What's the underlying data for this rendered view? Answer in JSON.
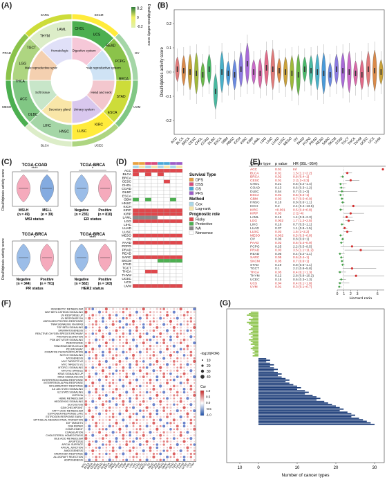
{
  "panels": {
    "A": "(A)",
    "B": "(B)",
    "C": "(C)",
    "D": "(D)",
    "E": "(E)",
    "F": "(F)",
    "G": "(G)"
  },
  "panel_a": {
    "legend_title": "Disulfidptosis activity score",
    "legend_ticks": [
      "0.2",
      "0",
      "-0.2"
    ],
    "outer_labels": [
      "CHOL",
      "UCS",
      "READ",
      "PCPG",
      "BRCA",
      "STAD",
      "ESCA",
      "KIRC",
      "LUSC",
      "HNSC",
      "LIHC",
      "DLBC",
      "ACC",
      "THCA",
      "LGG",
      "TGCT",
      "THYM",
      "LAML"
    ],
    "inner_labels": [
      "Digestive system",
      "Female reproductive system",
      "Head and neck",
      "Urinary system",
      "Secretory gland",
      "Soft tissue",
      "Male reproductive system",
      "Hematologic"
    ],
    "side_labels": [
      "SKCM",
      "OV",
      "UVM",
      "UCEC",
      "BLCA",
      "MESO",
      "PRAD",
      "SARC"
    ]
  },
  "panel_b": {
    "ylabel": "Disulfidptosis activity score",
    "yticks": [
      "0.2",
      "0.1",
      "0.0",
      "-0.1",
      "-0.2"
    ],
    "categories": [
      "ACC",
      "BLCA",
      "BRCA",
      "CESC",
      "CHOL",
      "COAD",
      "DLBC",
      "ESCA",
      "GBM",
      "HNSC",
      "KICH",
      "KIRC",
      "KIRP",
      "LAML",
      "LGG",
      "LIHC",
      "LUAD",
      "LUSC",
      "MESO",
      "OV",
      "PAAD",
      "PCPG",
      "PRAD",
      "READ",
      "SARC",
      "SKCM",
      "STAD",
      "TGCT",
      "THCA",
      "THYM",
      "UCEC",
      "UCS",
      "UVM"
    ],
    "colors": [
      "#e07a7a",
      "#d98a4a",
      "#c9a13a",
      "#9fb83a",
      "#6bb84a",
      "#4ab86a",
      "#4ab8a0",
      "#4ab0c8",
      "#4a9ad8",
      "#6a8ae0",
      "#8a7ae0",
      "#a86ad8",
      "#c86ac8",
      "#d86aa8",
      "#e06a88",
      "#e07a7a",
      "#d98a4a",
      "#c9a13a",
      "#9fb83a",
      "#6bb84a",
      "#4ab86a",
      "#4ab8a0",
      "#4ab0c8",
      "#4a9ad8",
      "#6a8ae0",
      "#8a7ae0",
      "#a86ad8",
      "#c86ac8",
      "#d86aa8",
      "#e06a88",
      "#e07a7a",
      "#d98a4a",
      "#c9a13a"
    ]
  },
  "panel_c": {
    "ylabel": "Disulfidptosis activity score",
    "plots": [
      {
        "title": "TCGA-COAD",
        "sig": "****",
        "groups": [
          "MSI-H",
          "MSI-L"
        ],
        "ns": [
          "(n = 49)",
          "(n = 39)"
        ],
        "xlabel": "MSI status",
        "colors": [
          "#f28da6",
          "#5b8fd6"
        ]
      },
      {
        "title": "TCGA-BRCA",
        "sig": "*",
        "groups": [
          "Negative",
          "Positive"
        ],
        "ns": [
          "(n = 235)",
          "(n = 810)"
        ],
        "xlabel": "ER status",
        "colors": [
          "#7aa7e0",
          "#f28da6"
        ]
      },
      {
        "title": "TCGA-BRCA",
        "sig": "*",
        "groups": [
          "Negative",
          "Positive"
        ],
        "ns": [
          "(n = 344)",
          "(n = 701)"
        ],
        "xlabel": "PR status",
        "colors": [
          "#7aa7e0",
          "#f28da6"
        ]
      },
      {
        "title": "TCGA-BRCA",
        "sig": "****",
        "groups": [
          "Negative",
          "Positive"
        ],
        "ns": [
          "(n = 562)",
          "(n = 163)"
        ],
        "xlabel": "HER2 status",
        "colors": [
          "#7aa7e0",
          "#f28da6"
        ]
      }
    ]
  },
  "panel_d": {
    "rows": [
      "ACC",
      "BLCA",
      "BRCA",
      "CESC",
      "CHOL",
      "COAD",
      "DLBC",
      "ESCA",
      "GBM",
      "HNSC",
      "KICH",
      "KIRC",
      "KIRP",
      "LAML",
      "LGG",
      "LIHC",
      "LUAD",
      "LUSC",
      "MESO",
      "OV",
      "PAAD",
      "PCPG",
      "PRAD",
      "READ",
      "SARC",
      "SKCM",
      "STAD",
      "TGCT",
      "THCA",
      "THYM",
      "UCEC",
      "UCS",
      "UVM"
    ],
    "legend": {
      "survival_title": "Survival Type",
      "survival": [
        {
          "label": "DFS",
          "color": "#e8a040"
        },
        {
          "label": "DSS",
          "color": "#d94c7c"
        },
        {
          "label": "OS",
          "color": "#4aa8d8"
        },
        {
          "label": "PFS",
          "color": "#9c5cc8"
        }
      ],
      "method_title": "Method",
      "method": [
        {
          "label": "Cox",
          "color": "#a8d8ea"
        },
        {
          "label": "Log-rank",
          "color": "#f5e6a8"
        }
      ],
      "prog_title": "Prognostic role",
      "prog": [
        {
          "label": "Risky",
          "color": "#e0474c"
        },
        {
          "label": "Protective",
          "color": "#4caf50"
        },
        {
          "label": "NA",
          "color": "#888888"
        },
        {
          "label": "Nonsense",
          "color": "#ffffff"
        }
      ]
    },
    "top_colors": [
      "#e8a040",
      "#e8a040",
      "#d94c7c",
      "#d94c7c",
      "#4aa8d8",
      "#4aa8d8",
      "#9c5cc8",
      "#9c5cc8"
    ],
    "method_colors": [
      "#a8d8ea",
      "#f5e6a8",
      "#a8d8ea",
      "#f5e6a8",
      "#a8d8ea",
      "#f5e6a8",
      "#a8d8ea",
      "#f5e6a8"
    ],
    "cells": [
      "RRRRRRRR",
      "RWRWRWWW",
      "WWWWWWWW",
      "WWWWWRWW",
      "WWWWWWWW",
      "WWWWWWWW",
      "WWWWWWWW",
      "WWWWWWWW",
      "GWGWWWGW",
      "WWWWWWWW",
      "WWWWWWWW",
      "RRRRRRRR",
      "RRRRRRRR",
      "NNNNWWWW",
      "RRRRRRRR",
      "WWWWWWWW",
      "WWWWWWWW",
      "WWWWWWWW",
      "RRRRRRRR",
      "WWWWWWWW",
      "RRRRRRRR",
      "WWWWWWWW",
      "WWWWWWWW",
      "WWWWWWWW",
      "RRRRRRRR",
      "WWWWGGGG",
      "WWWWWWWW",
      "WWWWWWWW",
      "WWRRWWWW",
      "WWWWWWWW",
      "WWWWWWWW",
      "WWWWWWWW",
      "RRRRRRRR"
    ]
  },
  "panel_e": {
    "headers": [
      "Cancer type",
      "p value",
      "HR (95L~95H)"
    ],
    "rows": [
      [
        "ACC",
        "0.01",
        "Inf",
        "r"
      ],
      [
        "BLCA",
        "0.01",
        "1.5 (1.1~2.2)",
        "r"
      ],
      [
        "BRCA",
        "0.02",
        "0.8 (0.4~1)",
        "r"
      ],
      [
        "CESC",
        "0.01",
        "2 (1.2~3.3)",
        "r"
      ],
      [
        "CHOL",
        "0.21",
        "0.5 (0.2~1.4)",
        "k"
      ],
      [
        "COAD",
        "0.13",
        "0.6 (0.3~1.2)",
        "k"
      ],
      [
        "DLBC",
        "0.54",
        "0.7 (0.1~3)",
        "k"
      ],
      [
        "ESCA",
        "0.01",
        "0.5 (0.2~1)",
        "r"
      ],
      [
        "GBM",
        "0.03",
        "0.7 (0.5~0.9)",
        "r"
      ],
      [
        "HNSC",
        "0.18",
        "0.8 (0.6~1.1)",
        "k"
      ],
      [
        "KICH",
        "0.2",
        "2.4 (0.4~13.6)",
        "k"
      ],
      [
        "KIRC",
        "<0.001",
        "0.5 (0.4~0.8)",
        "r"
      ],
      [
        "KIRP",
        "0.03",
        "2 (1~4)",
        "r"
      ],
      [
        "LAML",
        "0.15",
        "1.4 (0.8~2.3)",
        "k"
      ],
      [
        "LGG",
        "0.002",
        "1.7 (1.2~2.5)",
        "r"
      ],
      [
        "LIHC",
        "0.16",
        "0.7 (0.5~1.1)",
        "k"
      ],
      [
        "LUAD",
        "0.37",
        "1.1 (0.8~1.5)",
        "k"
      ],
      [
        "LUSC",
        "0.03",
        "1.5 (1~2.2)",
        "r"
      ],
      [
        "MESO",
        "0.002",
        "0.5 (0.3~0.8)",
        "r"
      ],
      [
        "OV",
        "0.06",
        "0.8 (0.6~1)",
        "k"
      ],
      [
        "PAAD",
        "0.02",
        "0.6 (0.4~0.9)",
        "r"
      ],
      [
        "PCPG",
        "0.25",
        "2.2 (0.5~9.5)",
        "k"
      ],
      [
        "PRAD",
        "0.03",
        "3.5 (1.1~11.2)",
        "r"
      ],
      [
        "READ",
        "0.06",
        "0.4 (0.2~1.1)",
        "k"
      ],
      [
        "SARC",
        "0.05",
        "0.6 (0.4~1)",
        "r"
      ],
      [
        "SKCM",
        "0.05",
        "0.7 (0.6~1)",
        "r"
      ],
      [
        "STAD",
        "0.19",
        "0.8 (0.6~1.1)",
        "k"
      ],
      [
        "TGCT",
        "0.1",
        "2.2 (0.8~5.8)",
        "k"
      ],
      [
        "THCA",
        "0.05",
        "0.4 (0.1~1.3)",
        "r"
      ],
      [
        "THYM",
        "0.12",
        "2.8 (0.8~10.2)",
        "k"
      ],
      [
        "UCEC",
        "0.15",
        "0.6 (0.3~1.3)",
        "k"
      ],
      [
        "UCS",
        "0.04",
        "0.4 (0.1~1.8)",
        "r"
      ],
      [
        "UVM",
        "0.01",
        "0.3 (0.1~0.7)",
        "r"
      ]
    ],
    "xlabel": "Hazard ratio",
    "xticks": [
      "0",
      "1",
      "2",
      "3",
      "6"
    ]
  },
  "panel_f": {
    "rows": [
      "XENOBIOTIC METABOLISM",
      "WNT BETA CATENIN SIGNALING",
      "UV RESPONSE UP",
      "UV RESPONSE DN",
      "UNFOLDED PROTEIN RESPONSE",
      "TNFA SIGNALING VIA NFKB",
      "TGF BETA SIGNALING",
      "SPERMATOGENESIS",
      "REACTIVE OXYGEN SPECIES PATHWAY",
      "PROTEIN SECRETION",
      "PI3K AKT MTOR SIGNALING",
      "PEROXISOME",
      "PANCREAS BETA CELLS",
      "P53 PATHWAY",
      "OXIDATIVE PHOSPHORYLATION",
      "NOTCH SIGNALING",
      "MYOGENESIS",
      "MYC TARGETS V2",
      "MYC TARGETS V1",
      "MTORC1 SIGNALING",
      "MITOTIC SPINDLE",
      "KRAS SIGNALING UP",
      "KRAS SIGNALING DN",
      "INTERFERON GAMMA RESPONSE",
      "INTERFERON ALPHA RESPONSE",
      "INFLAMMATORY RESPONSE",
      "IL6 JAK STAT3 SIGNALING",
      "IL2 STAT5 SIGNALING",
      "HYPOXIA",
      "HEME METABOLISM",
      "HEDGEHOG SIGNALING",
      "GLYCOLYSIS",
      "G2M CHECKPOINT",
      "FATTY ACID METABOLISM",
      "ESTROGEN RESPONSE LATE",
      "ESTROGEN RESPONSE EARLY",
      "EPITHELIAL MESENCHYMAL TRANSITION",
      "E2F TARGETS",
      "DNA REPAIR",
      "COMPLEMENT",
      "COAGULATION",
      "CHOLESTEROL HOMEOSTASIS",
      "BILE ACID METABOLISM",
      "APOPTOSIS",
      "APICAL SURFACE",
      "APICAL JUNCTION",
      "ANGIOGENESIS",
      "ANDROGEN RESPONSE",
      "ALLOGRAFT REJECTION",
      "ADIPOGENESIS"
    ],
    "cols": [
      "ACC",
      "BLCA",
      "BRCA",
      "CESC",
      "CHOL",
      "COAD",
      "DLBC",
      "ESCA",
      "GBM",
      "HNSC",
      "KICH",
      "KIRC",
      "KIRP",
      "LAML",
      "LGG",
      "LIHC",
      "LUAD",
      "LUSC",
      "MESO",
      "OV",
      "PAAD",
      "PCPG",
      "PRAD",
      "READ",
      "SARC",
      "SKCM",
      "STAD",
      "TGCT",
      "THCA",
      "THYM",
      "UCEC",
      "UCS",
      "UVM"
    ],
    "size_title": "-log10(FDR)",
    "size_ticks": [
      "10",
      "20",
      "30",
      "40"
    ],
    "cor_title": "Cor",
    "cor_ticks": [
      "1.0",
      "0.5",
      "0.0",
      "-0.5",
      "-1.0"
    ]
  },
  "panel_g": {
    "xlabel": "Number of cancer types",
    "xticks": [
      "10",
      "0",
      "10",
      "20",
      "30"
    ],
    "neg_values": [
      4,
      5,
      6,
      4,
      3,
      5,
      4,
      6,
      5,
      4,
      3,
      4,
      5,
      3,
      4,
      5,
      3,
      4,
      3,
      5,
      4,
      3,
      4,
      2,
      3,
      4,
      3,
      2,
      3,
      2,
      3
    ],
    "pos_values": [
      2,
      3,
      2,
      3,
      4,
      3,
      4,
      5,
      4,
      5,
      6,
      5,
      6,
      7,
      8,
      7,
      8,
      9,
      10,
      11,
      10,
      12,
      13,
      12,
      14,
      15,
      16,
      15,
      17,
      18,
      19,
      20,
      21,
      22,
      21,
      23,
      24,
      25,
      24,
      26,
      27,
      28,
      29,
      30
    ]
  }
}
